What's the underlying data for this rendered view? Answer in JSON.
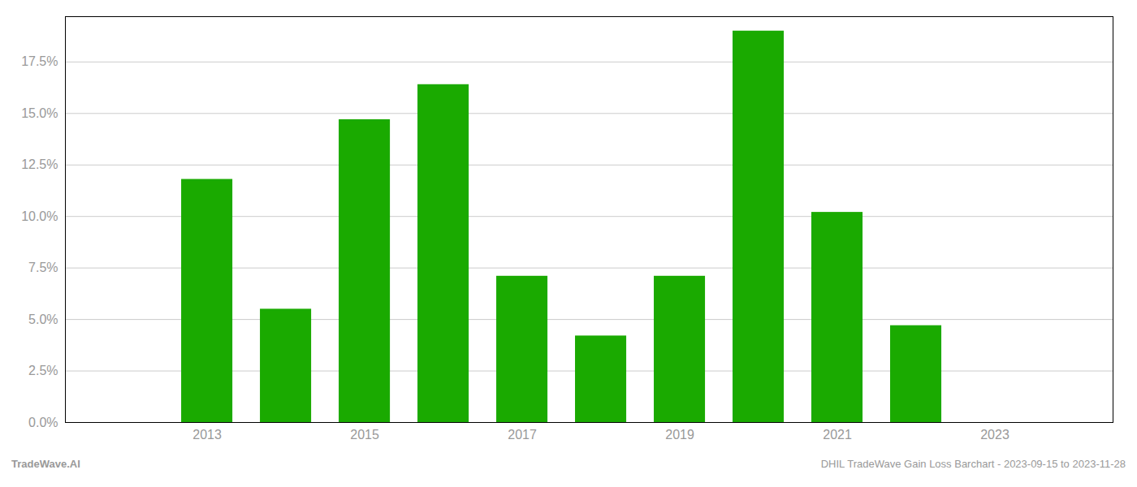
{
  "chart_data": {
    "type": "bar",
    "x": [
      2013,
      2014,
      2015,
      2016,
      2017,
      2018,
      2019,
      2020,
      2021,
      2022,
      2023
    ],
    "values": [
      0.118,
      0.055,
      0.147,
      0.164,
      0.071,
      0.042,
      0.071,
      0.19,
      0.102,
      0.047,
      0.0
    ],
    "color": "#1aaa00",
    "xlim": [
      2011.2,
      2024.5
    ],
    "xticks": [
      2013,
      2015,
      2017,
      2019,
      2021,
      2023
    ],
    "ylim": [
      0,
      0.197
    ],
    "yticks": [
      {
        "value": 0.0,
        "label": "0.0%"
      },
      {
        "value": 0.025,
        "label": "2.5%"
      },
      {
        "value": 0.05,
        "label": "5.0%"
      },
      {
        "value": 0.075,
        "label": "7.5%"
      },
      {
        "value": 0.1,
        "label": "10.0%"
      },
      {
        "value": 0.125,
        "label": "12.5%"
      },
      {
        "value": 0.15,
        "label": "15.0%"
      },
      {
        "value": 0.175,
        "label": "17.5%"
      }
    ],
    "grid": "y",
    "annotations": [
      "TradeWave.AI",
      "DHIL TradeWave Gain Loss Barchart - 2023-09-15 to 2023-11-28"
    ]
  }
}
